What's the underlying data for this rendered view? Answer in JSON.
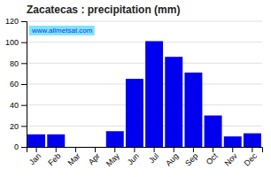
{
  "chart_data": {
    "type": "bar",
    "title": "Zacatecas : precipitation (mm)",
    "categories": [
      "Jan",
      "Feb",
      "Mar",
      "Apr",
      "May",
      "Jun",
      "Jul",
      "Aug",
      "Sep",
      "Oct",
      "Nov",
      "Dec"
    ],
    "values": [
      12,
      12,
      0,
      0,
      15,
      65,
      101,
      86,
      71,
      30,
      10,
      13
    ],
    "color": "#0000ee",
    "ylim": [
      0,
      120
    ],
    "yticks": [
      0,
      20,
      40,
      60,
      80,
      100,
      120
    ],
    "grid": true,
    "annotations": [
      "www.allmetsat.com"
    ]
  }
}
